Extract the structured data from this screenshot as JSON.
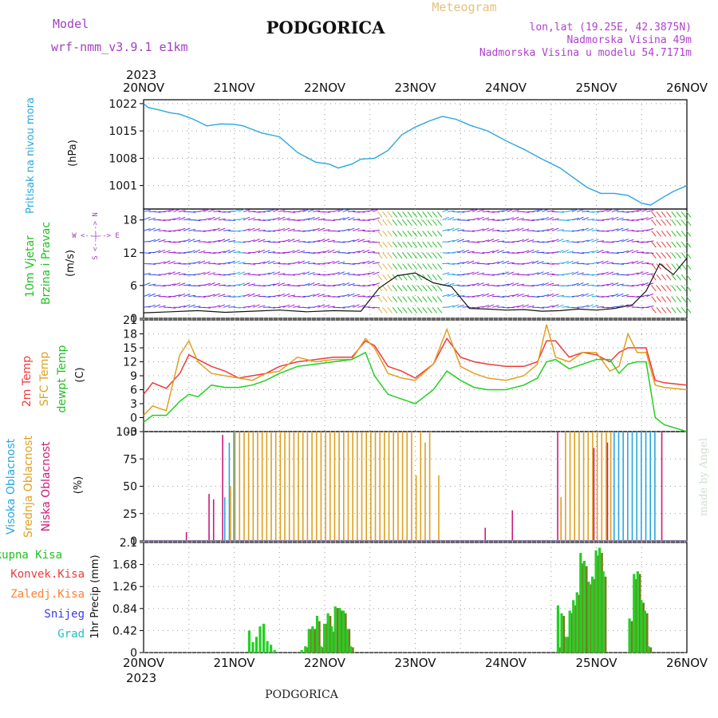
{
  "header": {
    "model_label": "Model",
    "model_name": "wrf-nmm_v3.9.1 e1km",
    "city": "PODGORICA",
    "meteogram": "Meteogram",
    "lonlat": "lon,lat (19.25E, 42.3875N)",
    "elevation": "Nadmorska Visina 49m",
    "model_elevation": "Nadmorska Visina u modelu 54.7171m",
    "year_top": "2023",
    "year_bottom": "2023",
    "footer_city": "PODGORICA",
    "made_by": "made by Angel"
  },
  "colors": {
    "pressure": "#2aa6e0",
    "wind_purple": "#9b1fd4",
    "wind_blue": "#3a4fe6",
    "temp2m": "#ee3b3b",
    "sfc": "#e0a020",
    "dewpt": "#22d022",
    "cloud_high": "#2aa6e0",
    "cloud_mid": "#e0a020",
    "cloud_low": "#cc1a7a",
    "precip_total": "#22d022",
    "precip_conv": "#ee3b3b",
    "precip_frz": "#ff8030",
    "precip_snow": "#3a3ae6",
    "precip_grad": "#20c0c0"
  },
  "chart_data": [
    {
      "type": "line",
      "panel": "pressure",
      "ylabel_left": "Pritisak na nivou mora",
      "ylabel_unit": "(hPa)",
      "x_ticks": [
        "20NOV",
        "21NOV",
        "22NOV",
        "23NOV",
        "24NOV",
        "25NOV",
        "26NOV"
      ],
      "ylim": [
        995,
        1023
      ],
      "y_ticks": [
        1001,
        1008,
        1015,
        1022
      ],
      "x": [
        0,
        0.05,
        0.15,
        0.3,
        0.4,
        0.55,
        0.7,
        0.85,
        1.0,
        1.1,
        1.3,
        1.5,
        1.7,
        1.9,
        2.05,
        2.15,
        2.3,
        2.4,
        2.55,
        2.7,
        2.85,
        3.0,
        3.15,
        3.3,
        3.45,
        3.6,
        3.8,
        4.0,
        4.2,
        4.4,
        4.6,
        4.75,
        4.9,
        5.05,
        5.2,
        5.35,
        5.5,
        5.6,
        5.7,
        5.85,
        6.0
      ],
      "series": [
        {
          "name": "Pritisak na nivou mora",
          "values": [
            1022,
            1021,
            1020.5,
            1019.6,
            1019.3,
            1018,
            1016.3,
            1016.8,
            1016.7,
            1016.3,
            1014.5,
            1013.5,
            1009.5,
            1007,
            1006.5,
            1005.5,
            1006.5,
            1007.8,
            1008,
            1010,
            1014,
            1016,
            1017.5,
            1018.7,
            1018,
            1016.5,
            1015,
            1012.5,
            1010.3,
            1007.8,
            1005.5,
            1003,
            1000.5,
            999,
            999,
            998.5,
            996.5,
            996,
            997.5,
            999.5,
            1001
          ]
        }
      ]
    },
    {
      "type": "line",
      "panel": "wind",
      "ylabel_left_1": "10m Vjetar",
      "ylabel_left_2": "Brzina i Pravac",
      "ylabel_unit": "(m/s)",
      "compass": "W <--|--> E",
      "compass_vertical": "S <--|--> N",
      "ylim": [
        0,
        20
      ],
      "y_ticks": [
        0,
        6,
        12,
        18
      ],
      "x": [
        0,
        0.3,
        0.6,
        0.9,
        1.2,
        1.5,
        1.8,
        2.1,
        2.4,
        2.6,
        2.8,
        3.0,
        3.2,
        3.4,
        3.6,
        3.8,
        4.0,
        4.2,
        4.4,
        4.6,
        4.8,
        5.0,
        5.2,
        5.4,
        5.55,
        5.7,
        5.85,
        6.0
      ],
      "series": [
        {
          "name": "10m Vjetar",
          "values": [
            1.0,
            1.2,
            1.4,
            1.1,
            1.3,
            1.5,
            1.2,
            1.4,
            1.3,
            5.5,
            7.8,
            8.3,
            6.5,
            5.8,
            1.8,
            1.7,
            1.5,
            1.6,
            1.3,
            1.4,
            1.7,
            1.5,
            1.8,
            2.5,
            5.0,
            10.0,
            8.0,
            11.0
          ]
        }
      ]
    },
    {
      "type": "line",
      "panel": "temperature",
      "ylabel_1": "2m Temp",
      "ylabel_2": "SFC Temp",
      "ylabel_3": "dewpt Temp",
      "ylabel_unit": "(C)",
      "ylim": [
        -3,
        21
      ],
      "y_ticks": [
        -3,
        0,
        3,
        6,
        9,
        12,
        15,
        18,
        21
      ],
      "x": [
        0,
        0.1,
        0.25,
        0.4,
        0.5,
        0.6,
        0.75,
        0.9,
        1.05,
        1.2,
        1.35,
        1.5,
        1.7,
        1.9,
        2.1,
        2.3,
        2.45,
        2.55,
        2.7,
        2.85,
        3.0,
        3.2,
        3.35,
        3.5,
        3.65,
        3.8,
        4.0,
        4.2,
        4.35,
        4.45,
        4.55,
        4.7,
        4.85,
        5.0,
        5.15,
        5.25,
        5.35,
        5.45,
        5.55,
        5.65,
        5.75,
        6.0
      ],
      "series": [
        {
          "name": "2m Temp",
          "values": [
            5,
            7.5,
            6.3,
            9.5,
            13.5,
            12.5,
            11,
            10,
            8.5,
            9,
            9.5,
            11,
            12,
            12.5,
            13,
            13,
            16.5,
            15.5,
            11,
            10,
            8.5,
            11.5,
            17,
            13,
            12,
            11.5,
            11,
            11,
            12,
            16.5,
            16.5,
            13,
            14,
            13.5,
            12,
            14,
            15,
            15,
            15,
            8,
            7.5,
            7
          ]
        },
        {
          "name": "SFC Temp",
          "values": [
            0.5,
            2.5,
            1.5,
            13.5,
            16.5,
            12,
            9.5,
            9,
            8.5,
            8,
            9.5,
            10,
            13,
            12,
            12.5,
            12.5,
            17,
            15,
            9.5,
            8.5,
            8,
            11.5,
            19,
            11,
            9.5,
            8.5,
            8,
            9,
            11.5,
            20,
            13,
            12,
            14,
            14,
            10,
            11,
            18,
            14,
            14,
            7,
            6.5,
            6
          ]
        },
        {
          "name": "dewpt Temp",
          "values": [
            -1,
            0.5,
            0.5,
            3.5,
            5,
            4.5,
            7,
            6.5,
            6.5,
            7,
            8,
            9.5,
            11,
            11.5,
            12,
            12.5,
            14,
            9,
            5,
            4,
            3,
            6,
            10,
            8,
            6.5,
            6,
            6,
            7,
            8.5,
            12,
            12.5,
            10.5,
            11.5,
            12.5,
            12.5,
            9.5,
            11.5,
            12,
            12,
            0,
            -1.5,
            -3
          ]
        }
      ]
    },
    {
      "type": "bar",
      "panel": "cloud",
      "ylabel_1": "Visoka Oblacnost",
      "ylabel_2": "Srednja Oblacnost",
      "ylabel_3": "Niska Oblacnost",
      "ylabel_unit": "(%)",
      "ylim": [
        0,
        100
      ],
      "y_ticks": [
        0,
        25,
        50,
        75,
        100
      ],
      "x": [
        0.45,
        0.7,
        0.75,
        0.85,
        0.9,
        0.95,
        1.0,
        1.05,
        1.1,
        1.15,
        1.2,
        1.25,
        1.3,
        1.35,
        1.4,
        1.45,
        1.5,
        1.55,
        1.6,
        1.65,
        1.7,
        1.75,
        1.8,
        1.85,
        1.9,
        1.95,
        2.0,
        2.05,
        2.1,
        2.15,
        2.2,
        2.25,
        2.3,
        2.35,
        2.4,
        2.45,
        2.5,
        2.55,
        2.6,
        2.65,
        2.7,
        2.75,
        2.8,
        2.85,
        2.9,
        2.95,
        3.0,
        3.05,
        3.1,
        3.15,
        3.25,
        3.5,
        3.75,
        4.05,
        4.25,
        4.55,
        4.6,
        4.65,
        4.7,
        4.75,
        4.8,
        4.85,
        4.9,
        4.95,
        5.0,
        5.05,
        5.1,
        5.15,
        5.2,
        5.25,
        5.3,
        5.35,
        5.4,
        5.45,
        5.5,
        5.55,
        5.6,
        5.65,
        5.7
      ],
      "series": [
        {
          "name": "Visoka Oblacnost",
          "values": [
            0,
            0,
            0,
            0,
            40,
            90,
            100,
            0,
            0,
            0,
            0,
            0,
            0,
            0,
            0,
            0,
            0,
            0,
            0,
            0,
            0,
            0,
            0,
            0,
            0,
            0,
            0,
            0,
            0,
            0,
            0,
            0,
            0,
            0,
            0,
            0,
            0,
            0,
            0,
            0,
            0,
            0,
            0,
            0,
            0,
            0,
            0,
            0,
            0,
            0,
            0,
            0,
            0,
            0,
            0,
            0,
            0,
            0,
            0,
            0,
            0,
            0,
            0,
            0,
            0,
            0,
            0,
            0,
            100,
            100,
            100,
            100,
            100,
            100,
            100,
            100,
            100,
            100,
            0
          ]
        },
        {
          "name": "Srednja Oblacnost",
          "values": [
            0,
            0,
            0,
            0,
            0,
            50,
            100,
            100,
            100,
            100,
            100,
            100,
            100,
            100,
            100,
            100,
            100,
            100,
            100,
            100,
            100,
            100,
            100,
            100,
            100,
            100,
            100,
            100,
            100,
            100,
            100,
            100,
            100,
            100,
            100,
            100,
            100,
            100,
            100,
            100,
            100,
            100,
            100,
            100,
            100,
            100,
            60,
            100,
            90,
            100,
            60,
            0,
            0,
            0,
            0,
            0,
            40,
            100,
            100,
            100,
            100,
            100,
            100,
            100,
            100,
            100,
            100,
            100,
            0,
            0,
            0,
            0,
            0,
            0,
            0,
            0,
            0,
            0,
            0
          ]
        },
        {
          "name": "Niska Oblacnost",
          "values": [
            8,
            43,
            38,
            97,
            0,
            0,
            0,
            0,
            0,
            0,
            0,
            0,
            0,
            0,
            0,
            0,
            0,
            0,
            0,
            0,
            0,
            0,
            0,
            0,
            0,
            0,
            0,
            0,
            0,
            0,
            0,
            0,
            0,
            0,
            0,
            0,
            0,
            0,
            0,
            0,
            0,
            0,
            0,
            0,
            0,
            0,
            0,
            0,
            0,
            0,
            0,
            0,
            12,
            28,
            0,
            100,
            0,
            0,
            0,
            0,
            0,
            0,
            0,
            85,
            0,
            0,
            90,
            0,
            0,
            0,
            0,
            0,
            0,
            0,
            0,
            0,
            0,
            0,
            100
          ]
        }
      ]
    },
    {
      "type": "bar",
      "panel": "precip",
      "ylabel_unit": "1hr Precip (mm)",
      "legend": [
        "Ukupna Kisa",
        "Konvek.Kisa",
        "Zaledj.Kisa",
        "Snijeg",
        "Grad"
      ],
      "ylim": [
        0,
        2.1
      ],
      "y_ticks": [
        "0",
        "0.42",
        "0.84",
        "1.26",
        "1.68",
        "2.1"
      ],
      "x_ticks": [
        "20NOV",
        "21NOV",
        "22NOV",
        "23NOV",
        "24NOV",
        "25NOV",
        "26NOV"
      ],
      "x": [
        1.17,
        1.21,
        1.25,
        1.29,
        1.33,
        1.37,
        1.41,
        1.45,
        1.75,
        1.79,
        1.83,
        1.87,
        1.92,
        1.96,
        2.0,
        2.04,
        2.08,
        2.12,
        2.17,
        2.21,
        2.25,
        2.29,
        4.58,
        4.62,
        4.67,
        4.71,
        4.75,
        4.79,
        4.83,
        4.87,
        4.92,
        4.96,
        5.0,
        5.04,
        5.08,
        5.37,
        5.42,
        5.46,
        5.5,
        5.54,
        5.58
      ],
      "series": [
        {
          "name": "Ukupna Kisa",
          "values": [
            0.42,
            0.2,
            0.3,
            0.5,
            0.55,
            0.22,
            0.15,
            0.05,
            0.05,
            0.12,
            0.45,
            0.5,
            0.7,
            0.12,
            0.55,
            0.75,
            0.5,
            0.88,
            0.85,
            0.8,
            0.45,
            0.12,
            0.9,
            0.75,
            0.3,
            0.8,
            1.0,
            1.15,
            1.9,
            1.75,
            1.35,
            1.45,
            1.95,
            2.0,
            1.55,
            0.65,
            1.5,
            1.55,
            1.0,
            0.8,
            0.12
          ]
        },
        {
          "name": "Konvek.Kisa",
          "values": [
            0,
            0,
            0,
            0,
            0,
            0,
            0,
            0,
            0,
            0.1,
            0.45,
            0.45,
            0.6,
            0.1,
            0.55,
            0.7,
            0.4,
            0.85,
            0.8,
            0.75,
            0.45,
            0.1,
            0.1,
            0.7,
            0.3,
            0.75,
            0.9,
            1.1,
            1.7,
            1.65,
            1.3,
            1.4,
            1.85,
            1.9,
            1.45,
            0.6,
            1.4,
            1.5,
            0.95,
            0.75,
            0.1
          ]
        }
      ]
    }
  ]
}
